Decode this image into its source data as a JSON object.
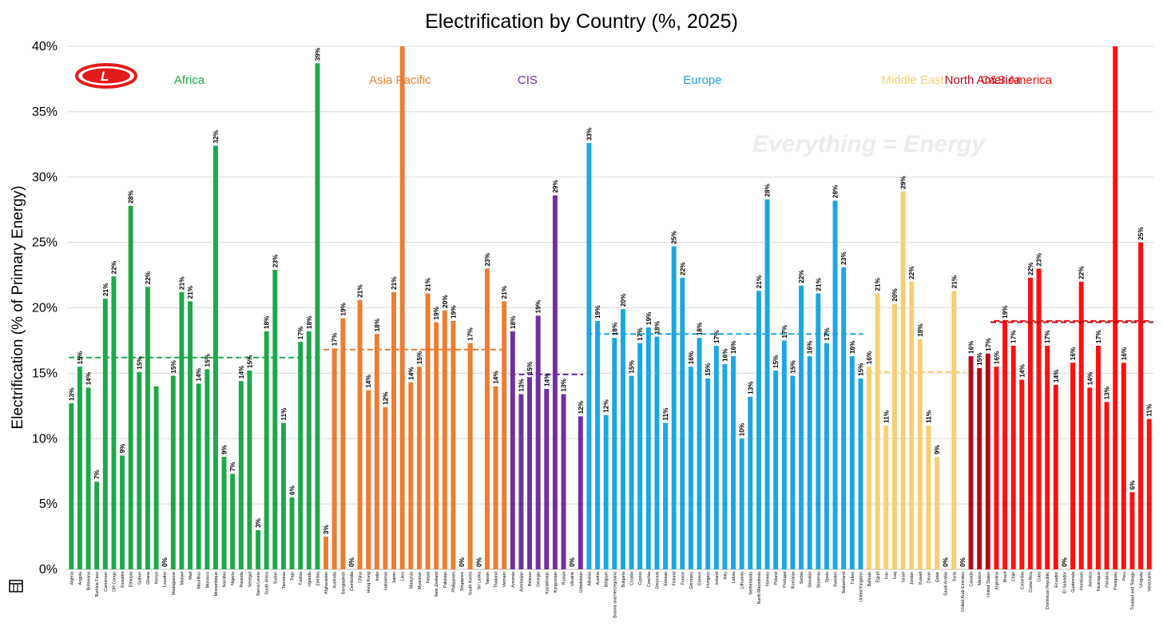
{
  "chart_data": {
    "type": "bar",
    "title": "Electrification by Country (%, 2025)",
    "ylabel": "Electrification (% of Primary Energy)",
    "xlabel": "",
    "ylim": [
      0,
      40
    ],
    "yticks": [
      "0%",
      "5%",
      "10%",
      "15%",
      "20%",
      "25%",
      "30%",
      "35%",
      "40%"
    ],
    "grid": "horizontal",
    "watermark": "Everything = Energy",
    "logo": "L",
    "logo_color": "#e31b1b",
    "groups": [
      {
        "name": "Africa",
        "color": "#1ea84a",
        "avg": 16.2,
        "countries": [
          "Algeria",
          "Angola",
          "Botswana",
          "Burkina Faso",
          "Cameroon",
          "DR Congo",
          "Eswatini",
          "Ethiopia",
          "Gabon",
          "Ghana",
          "Kenya",
          "Lesotho",
          "Madagascar",
          "Malawi",
          "Mali",
          "Mauritius",
          "Morocco",
          "Mozambique",
          "Namibia",
          "Nigeria",
          "Rwanda",
          "Senegal",
          "Sierra Leone",
          "South Africa",
          "Sudan",
          "Tanzania",
          "Togo",
          "Tunisia",
          "Uganda",
          "Zambia"
        ],
        "values": [
          12.7,
          15.5,
          13.9,
          6.7,
          20.7,
          22.4,
          8.7,
          27.8,
          15.1,
          21.6,
          14.0,
          0.0,
          14.8,
          21.2,
          20.5,
          14.2,
          15.3,
          32.4,
          8.6,
          7.3,
          14.4,
          15.2,
          3.0,
          18.2,
          22.9,
          11.2,
          5.5,
          17.4,
          18.2,
          38.7
        ],
        "labels": [
          "13%",
          "15%",
          "14%",
          "7%",
          "21%",
          "22%",
          "9%",
          "28%",
          "15%",
          "22%",
          "",
          "0%",
          "15%",
          "21%",
          "21%",
          "14%",
          "15%",
          "32%",
          "9%",
          "7%",
          "14%",
          "15%",
          "3%",
          "18%",
          "23%",
          "11%",
          "6%",
          "17%",
          "18%",
          "39%"
        ]
      },
      {
        "name": "Asia Pacific",
        "color": "#ed7d31",
        "avg": 16.8,
        "countries": [
          "Afghanistan",
          "Australia",
          "Bangladesh",
          "Cambodia",
          "China",
          "Hong Kong",
          "India",
          "Indonesia",
          "Japan",
          "Laos",
          "Malaysia",
          "Myanmar",
          "Nepal",
          "New Zealand",
          "Pakistan",
          "Philippines",
          "Singapore",
          "South Korea",
          "Sri Lanka",
          "Taiwan",
          "Thailand",
          "Vietnam"
        ],
        "values": [
          2.5,
          16.9,
          19.2,
          0.0,
          20.6,
          13.7,
          18.0,
          12.4,
          21.2,
          40.0,
          14.3,
          15.5,
          21.1,
          18.9,
          19.8,
          19.0,
          0.0,
          17.3,
          0.0,
          23.0,
          14.0,
          20.5
        ],
        "labels": [
          "3%",
          "17%",
          "19%",
          "0%",
          "21%",
          "14%",
          "18%",
          "12%",
          "21%",
          "",
          "14%",
          "15%",
          "21%",
          "19%",
          "20%",
          "19%",
          "0%",
          "17%",
          "0%",
          "23%",
          "14%",
          "21%"
        ]
      },
      {
        "name": "CIS",
        "color": "#7030a0",
        "avg": 14.9,
        "countries": [
          "Armenia",
          "Azerbaijan",
          "Belarus",
          "Georgia",
          "Kazakhstan",
          "Kyrgyzstan",
          "Russia",
          "Ukraine",
          "Uzbekistan"
        ],
        "values": [
          18.2,
          13.4,
          14.7,
          19.4,
          13.8,
          28.6,
          13.4,
          0.0,
          11.7
        ],
        "labels": [
          "18%",
          "13%",
          "15%",
          "19%",
          "14%",
          "29%",
          "13%",
          "0%",
          "12%"
        ]
      },
      {
        "name": "Europe",
        "color": "#1ba7e1",
        "avg": 18.0,
        "countries": [
          "Albania",
          "Austria",
          "Belgium",
          "Bosnia and Herzegovina",
          "Bulgaria",
          "Croatia",
          "Cyprus",
          "Czechia",
          "Denmark",
          "Estonia",
          "Finland",
          "France",
          "Germany",
          "Greece",
          "Hungary",
          "Ireland",
          "Italy",
          "Latvia",
          "Lithuania",
          "Netherlands",
          "North Macedonia",
          "Norway",
          "Poland",
          "Portugal",
          "Romania",
          "Serbia",
          "Slovakia",
          "Slovenia",
          "Spain",
          "Sweden",
          "Switzerland",
          "Turkey",
          "United Kingdom"
        ],
        "values": [
          32.6,
          19.0,
          11.8,
          17.7,
          19.9,
          14.8,
          17.3,
          18.5,
          17.8,
          11.2,
          24.7,
          22.3,
          15.5,
          17.7,
          14.6,
          17.1,
          15.7,
          16.3,
          10.0,
          13.2,
          21.3,
          28.3,
          15.2,
          17.5,
          14.8,
          21.7,
          16.3,
          21.1,
          17.3,
          28.2,
          23.1,
          16.3,
          14.6
        ],
        "labels": [
          "33%",
          "19%",
          "12%",
          "18%",
          "20%",
          "15%",
          "17%",
          "19%",
          "18%",
          "11%",
          "25%",
          "22%",
          "16%",
          "18%",
          "15%",
          "17%",
          "16%",
          "16%",
          "10%",
          "13%",
          "21%",
          "28%",
          "15%",
          "17%",
          "15%",
          "22%",
          "16%",
          "21%",
          "17%",
          "28%",
          "23%",
          "16%",
          "15%"
        ]
      },
      {
        "name": "Middle East",
        "color": "#f7cf73",
        "avg": 15.1,
        "countries": [
          "Bahrain",
          "Egypt",
          "Iran",
          "Iraq",
          "Israel",
          "Jordan",
          "Kuwait",
          "Oman",
          "Qatar",
          "Saudi Arabia",
          "Syria",
          "United Arab Emirates"
        ],
        "values": [
          15.5,
          21.1,
          11.0,
          20.3,
          28.9,
          22.0,
          17.6,
          11.0,
          8.6,
          0.0,
          21.3,
          0.0
        ],
        "labels": [
          "16%",
          "21%",
          "11%",
          "20%",
          "29%",
          "22%",
          "18%",
          "11%",
          "9%",
          "0%",
          "21%",
          "0%"
        ]
      },
      {
        "name": "North America",
        "color": "#b30a1a",
        "avg": null,
        "countries": [
          "Canada",
          "Mexico",
          "United States"
        ],
        "values": [
          16.3,
          15.4,
          16.5
        ],
        "labels": [
          "16%",
          "15%",
          "17%"
        ]
      },
      {
        "name": "C&S America",
        "color": "#ff0f0f",
        "avg": 19.0,
        "countries": [
          "Argentina",
          "Brazil",
          "Chile",
          "Colombia",
          "Costa Rica",
          "Cuba",
          "Dominican Republic",
          "Ecuador",
          "El Salvador",
          "Guatemala",
          "Honduras",
          "Jamaica",
          "Nicaragua",
          "Panama",
          "Paraguay",
          "Peru",
          "Trinidad and Tobago",
          "Uruguay",
          "Venezuela"
        ],
        "values": [
          15.5,
          19.0,
          17.1,
          14.5,
          22.3,
          23.0,
          17.1,
          14.1,
          0.0,
          15.8,
          22.0,
          13.9,
          17.1,
          12.8,
          40.0,
          15.8,
          5.9,
          25.0,
          11.5
        ],
        "labels": [
          "16%",
          "19%",
          "17%",
          "14%",
          "22%",
          "23%",
          "17%",
          "14%",
          "0%",
          "16%",
          "22%",
          "14%",
          "17%",
          "13%",
          "",
          "16%",
          "6%",
          "25%",
          "11%"
        ]
      }
    ],
    "na_avg": 18.9
  }
}
